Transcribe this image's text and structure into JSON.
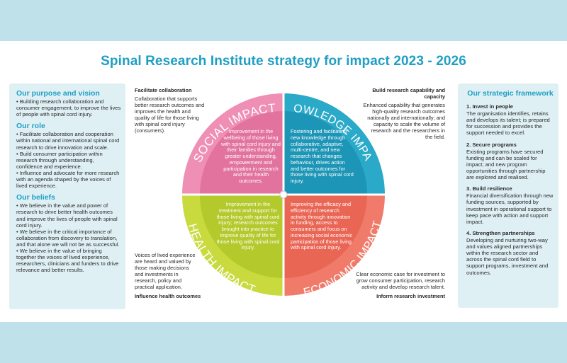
{
  "title": "Spinal Research Institute strategy for impact 2023 - 2026",
  "colors": {
    "social": "#ef8fb5",
    "knowledge": "#2aa9c9",
    "health": "#c8da3e",
    "economic": "#f07b6a",
    "title": "#1f9fc4"
  },
  "left_panel": {
    "purpose_heading": "Our purpose and vision",
    "purpose_text": "• Building research collaboration and consumer engagement, to improve the lives of people with spinal cord injury.",
    "role_heading": "Our role",
    "role_text": "• Facilitate collaboration and cooperation within national and international spinal cord research to drive innovation and scale.\n• Build consumer participation within research through understanding, confidence and experience.\n• Influence and advocate for more research with an agenda shaped by the voices of lived experience.",
    "beliefs_heading": "Our beliefs",
    "beliefs_text": "• We believe in the value and power of research to drive better health outcomes and improve the lives of people with spinal cord injury.\n• We believe in the critical importance of collaboration from discovery to translation, and that alone we will not be as successful.\n• We believe in the value of bringing together the voices of lived experience, researchers, clinicians and funders to drive relevance and better results."
  },
  "right_panel": {
    "heading": "Our strategic framework",
    "items": [
      {
        "title": "1. Invest in people",
        "text": "The organisation identifies, retains and develops its talent; is prepared for succession and provides the support needed to excel."
      },
      {
        "title": "2. Secure programs",
        "text": "Existing programs have secured funding and can be scaled for impact; and new program opportunities through partnership are explored and realised."
      },
      {
        "title": "3. Build resilience",
        "text": "Financial diversification through new funding sources, supported by investment in operational support to keep pace with action and support impact."
      },
      {
        "title": "4. Strengthen partnerships",
        "text": "Developing and nurturing two-way and values aligned partnerships within the research sector and across the spinal cord field to support programs, investment and outcomes."
      }
    ]
  },
  "notes": {
    "top_left_heading": "Facilitate collaboration",
    "top_left_text": "Collaboration that supports better research outcomes and improves the health and quality of life for those living with spinal cord injury (consumers).",
    "top_right_heading": "Build research capability and capacity",
    "top_right_text": "Enhanced capability that generates high-quality research outcomes nationally and internationally; and capacity to scale the volume of research and the researchers in the field.",
    "bottom_left_text": "Voices of lived experience are heard and valued by those making decisions and investments in research, policy and practical application.",
    "bottom_left_heading": "Influence health outcomes",
    "bottom_right_text": "Clear economic case for investment to grow consumer participation, research activity and develop research talent.",
    "bottom_right_heading": "Inform research investment"
  },
  "quadrants": {
    "social_label": "SOCIAL IMPACT",
    "knowledge_label": "KNOWLEDGE IMPACT",
    "health_label": "HEALTH IMPACT",
    "economic_label": "ECONOMIC IMPACT",
    "social_text": "Improvement in the wellbeing of those living with spinal cord injury and their families through greater understanding, empowerment and participation in research and their health outcomes.",
    "knowledge_text": "Fostering and facilitating new knowledge through collaborative, adaptive, multi-centre, and new research that changes behaviour, drives action and better outcomes for those living with spinal cord injury.",
    "health_text": "Improvement in the treatment and support for those living with spinal cord injury; research outcomes brought into practice to improve quality of life for those living with spinal cord injury.",
    "economic_text": "Improving the efficacy and efficiency of research activity through innovation in funding, access to consumers and focus on increasing social economic participation of those living with spinal cord injury."
  }
}
